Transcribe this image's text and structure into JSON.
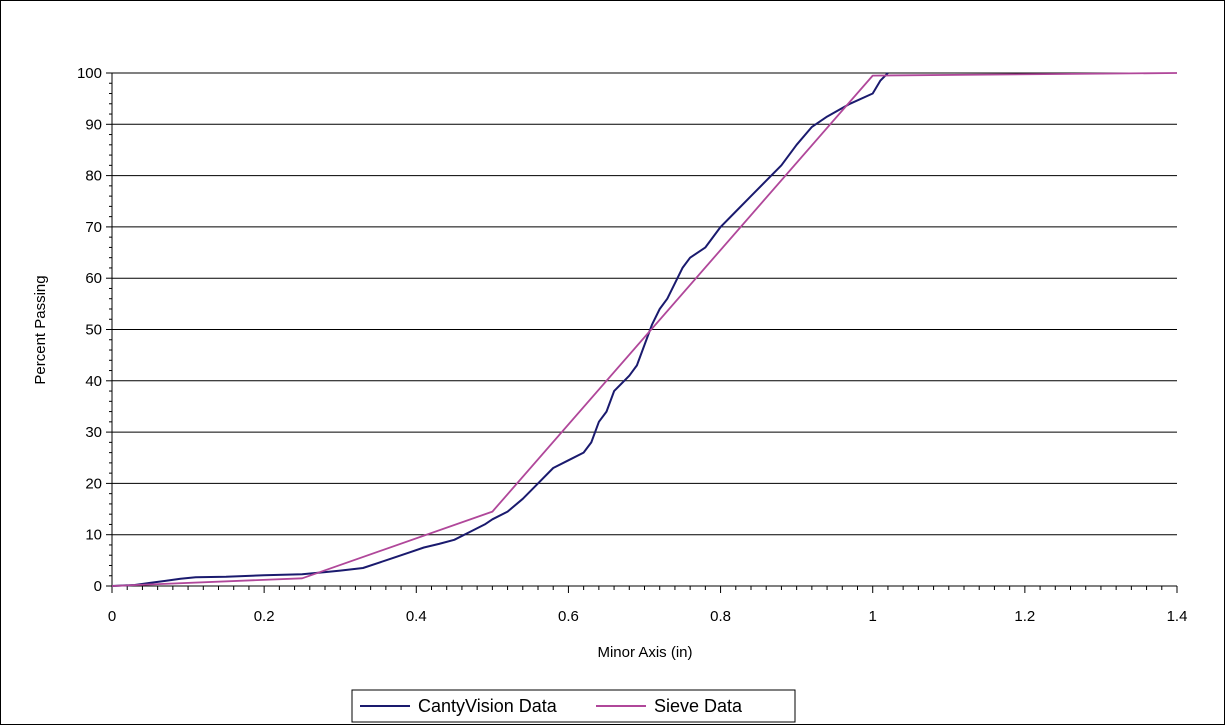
{
  "chart_data": {
    "type": "line",
    "title": "",
    "xlabel": "Minor Axis (in)",
    "ylabel": "Percent Passing",
    "xlim": [
      0,
      1.4
    ],
    "ylim": [
      0,
      100
    ],
    "xticks": [
      "0",
      "0.2",
      "0.4",
      "0.6",
      "0.8",
      "1",
      "1.2",
      "1.4"
    ],
    "yticks": [
      "0",
      "10",
      "20",
      "30",
      "40",
      "50",
      "60",
      "70",
      "80",
      "90",
      "100"
    ],
    "grid": "horizontal",
    "legend_position": "bottom",
    "series": [
      {
        "name": "CantyVision Data",
        "color": "#1a1a6e",
        "x": [
          0,
          0.03,
          0.05,
          0.07,
          0.09,
          0.11,
          0.15,
          0.2,
          0.25,
          0.28,
          0.3,
          0.33,
          0.35,
          0.37,
          0.39,
          0.41,
          0.43,
          0.45,
          0.47,
          0.49,
          0.5,
          0.52,
          0.54,
          0.56,
          0.58,
          0.6,
          0.62,
          0.63,
          0.64,
          0.65,
          0.66,
          0.68,
          0.69,
          0.7,
          0.71,
          0.72,
          0.73,
          0.74,
          0.75,
          0.76,
          0.78,
          0.8,
          0.82,
          0.84,
          0.86,
          0.88,
          0.9,
          0.92,
          0.94,
          0.97,
          1.0,
          1.01,
          1.02
        ],
        "y": [
          0,
          0.2,
          0.6,
          1.0,
          1.4,
          1.7,
          1.8,
          2.1,
          2.3,
          2.7,
          3.0,
          3.5,
          4.5,
          5.5,
          6.5,
          7.5,
          8.2,
          9.0,
          10.5,
          12.0,
          13.0,
          14.5,
          17.0,
          20.0,
          23.0,
          24.5,
          26.0,
          28.0,
          32.0,
          34.0,
          38.0,
          41.0,
          43.0,
          47.0,
          51.0,
          54.0,
          56.0,
          59.0,
          62.0,
          64.0,
          66.0,
          70.0,
          73.0,
          76.0,
          79.0,
          82.0,
          86.0,
          89.5,
          91.5,
          94.0,
          96.0,
          98.5,
          100
        ]
      },
      {
        "name": "Sieve Data",
        "color": "#b0479a",
        "x": [
          0,
          0.25,
          0.5,
          1.0,
          1.4
        ],
        "y": [
          0,
          1.5,
          14.5,
          99.5,
          100
        ]
      }
    ]
  }
}
